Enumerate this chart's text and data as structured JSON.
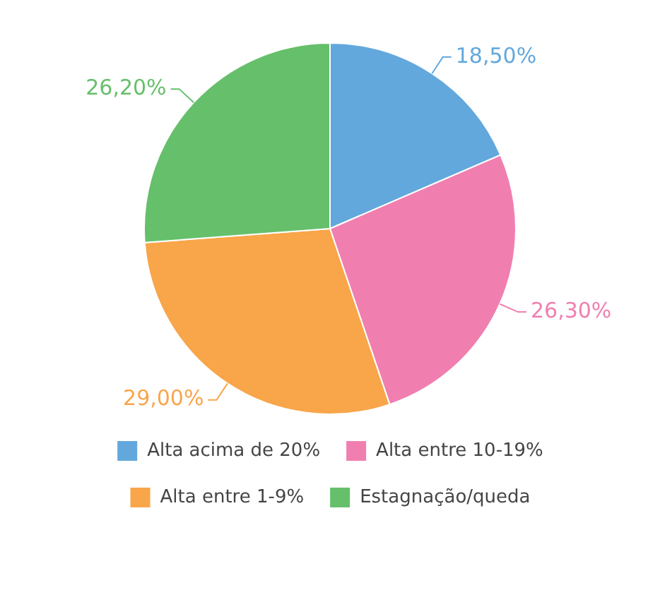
{
  "chart_data": {
    "type": "pie",
    "categories": [
      "Alta acima de 20%",
      "Alta entre 10-19%",
      "Alta entre 1-9%",
      "Estagnação/queda"
    ],
    "values": [
      18.5,
      26.3,
      29.0,
      26.2
    ],
    "colors": [
      "#62a8dc",
      "#f07fb0",
      "#f9a54a",
      "#66bf6b"
    ],
    "value_labels": [
      "18,50%",
      "26,30%",
      "29,00%",
      "26,20%"
    ],
    "legend": "bottom"
  }
}
